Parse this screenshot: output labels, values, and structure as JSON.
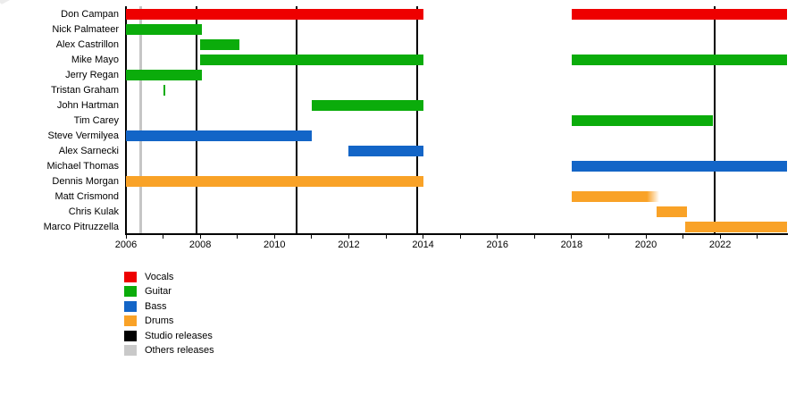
{
  "page": {
    "background": "#ffffff"
  },
  "chart_data": {
    "type": "gantt-timeline",
    "x_min": 2006,
    "x_max": 2023.8,
    "x_tick_years": [
      2006,
      2007,
      2008,
      2009,
      2010,
      2011,
      2012,
      2013,
      2014,
      2015,
      2016,
      2017,
      2018,
      2019,
      2020,
      2021,
      2022,
      2023
    ],
    "x_label_years": [
      2006,
      2008,
      2010,
      2012,
      2014,
      2016,
      2018,
      2020,
      2022
    ],
    "roles": {
      "Vocals": "#ee0000",
      "Guitar": "#0bac0b",
      "Bass": "#1365c7",
      "Drums": "#f9a227"
    },
    "members": [
      {
        "name": "Don Campan",
        "role": "Vocals",
        "segments": [
          [
            2006,
            2014
          ],
          [
            2018,
            2023.8
          ]
        ]
      },
      {
        "name": "Nick Palmateer",
        "role": "Guitar",
        "segments": [
          [
            2006,
            2008.05
          ]
        ]
      },
      {
        "name": "Alex Castrillon",
        "role": "Guitar",
        "segments": [
          [
            2008,
            2009.05
          ]
        ]
      },
      {
        "name": "Mike Mayo",
        "role": "Guitar",
        "segments": [
          [
            2008,
            2014
          ],
          [
            2018,
            2023.8
          ]
        ]
      },
      {
        "name": "Jerry Regan",
        "role": "Guitar",
        "segments": [
          [
            2006,
            2008.05
          ]
        ]
      },
      {
        "name": "Tristan Graham",
        "role": "Guitar",
        "segments": [
          [
            2007,
            2007.07
          ]
        ]
      },
      {
        "name": "John Hartman",
        "role": "Guitar",
        "segments": [
          [
            2011,
            2014
          ]
        ]
      },
      {
        "name": "Tim Carey",
        "role": "Guitar",
        "segments": [
          [
            2018,
            2021.8
          ]
        ]
      },
      {
        "name": "Steve Vermilyea",
        "role": "Bass",
        "segments": [
          [
            2006,
            2011
          ]
        ]
      },
      {
        "name": "Alex Sarnecki",
        "role": "Bass",
        "segments": [
          [
            2012,
            2014
          ]
        ]
      },
      {
        "name": "Michael Thomas",
        "role": "Bass",
        "segments": [
          [
            2018,
            2023.8
          ]
        ]
      },
      {
        "name": "Dennis Morgan",
        "role": "Drums",
        "segments": [
          [
            2006,
            2014
          ]
        ]
      },
      {
        "name": "Matt Crismond",
        "role": "Drums",
        "segments": [
          [
            2018,
            2020.35
          ]
        ],
        "fade_end": true
      },
      {
        "name": "Chris Kulak",
        "role": "Drums",
        "segments": [
          [
            2020.3,
            2021.1
          ]
        ]
      },
      {
        "name": "Marco Pitruzzella",
        "role": "Drums",
        "segments": [
          [
            2021.05,
            2023.8
          ]
        ]
      }
    ],
    "release_lines": {
      "studio_years": [
        2007.9,
        2010.6,
        2013.85,
        2021.85
      ],
      "studio_color": "#000000",
      "others_years": [
        2006.4
      ],
      "others_color": "#c6c6c6"
    },
    "axis_color": "#000000"
  },
  "legend": {
    "items": [
      {
        "label": "Vocals",
        "color": "#ee0000"
      },
      {
        "label": "Guitar",
        "color": "#0bac0b"
      },
      {
        "label": "Bass",
        "color": "#1365c7"
      },
      {
        "label": "Drums",
        "color": "#f9a227"
      },
      {
        "label": "Studio releases",
        "color": "#000000"
      },
      {
        "label": "Others releases",
        "color": "#c9c9c9"
      }
    ]
  }
}
